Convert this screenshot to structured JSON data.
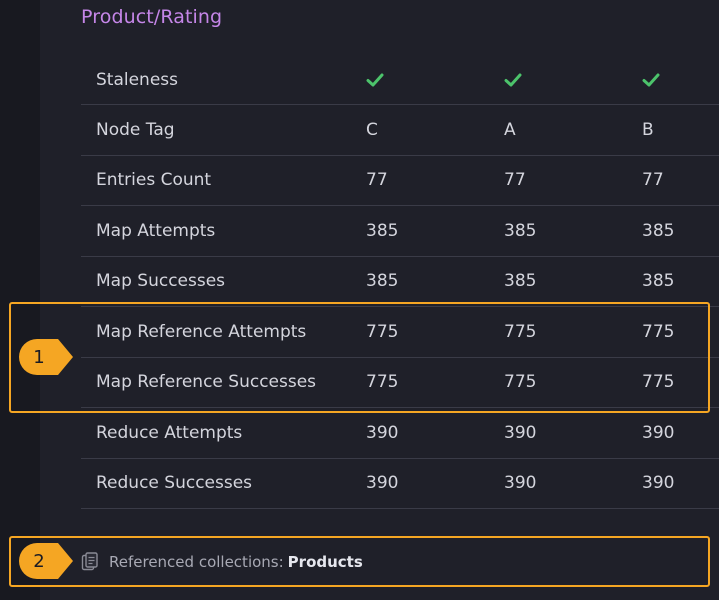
{
  "title": "Product/Rating",
  "rows": [
    {
      "label": "Staleness",
      "values": [
        "✔",
        "✔",
        "✔"
      ],
      "type": "check"
    },
    {
      "label": "Node Tag",
      "values": [
        "C",
        "A",
        "B"
      ]
    },
    {
      "label": "Entries Count",
      "values": [
        "77",
        "77",
        "77"
      ]
    },
    {
      "label": "Map Attempts",
      "values": [
        "385",
        "385",
        "385"
      ]
    },
    {
      "label": "Map Successes",
      "values": [
        "385",
        "385",
        "385"
      ]
    },
    {
      "label": "Map Reference Attempts",
      "values": [
        "775",
        "775",
        "775"
      ]
    },
    {
      "label": "Map Reference Successes",
      "values": [
        "775",
        "775",
        "775"
      ]
    },
    {
      "label": "Reduce Attempts",
      "values": [
        "390",
        "390",
        "390"
      ]
    },
    {
      "label": "Reduce Successes",
      "values": [
        "390",
        "390",
        "390"
      ]
    }
  ],
  "callouts": [
    "1",
    "2"
  ],
  "references": {
    "label": "Referenced collections:",
    "value": "Products"
  },
  "colors": {
    "accent_title": "#c586e8",
    "check": "#4cc36b",
    "highlight": "#f5a623"
  }
}
